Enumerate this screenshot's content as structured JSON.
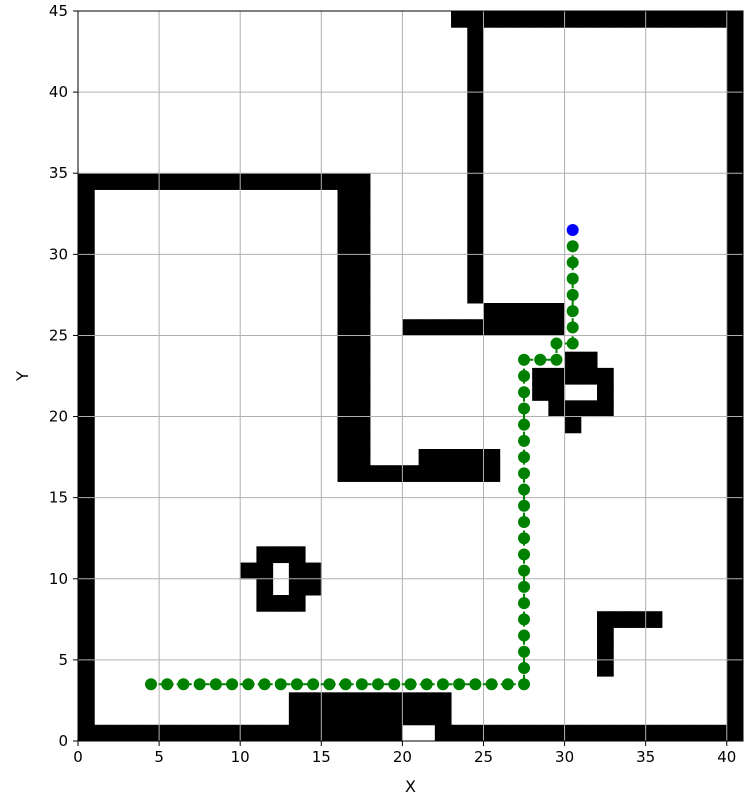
{
  "chart_data": {
    "type": "scatter",
    "title": "",
    "xlabel": "X",
    "ylabel": "Y",
    "xlim": [
      0,
      41
    ],
    "ylim": [
      0,
      45
    ],
    "xticks": [
      0,
      5,
      10,
      15,
      20,
      25,
      30,
      35,
      40
    ],
    "yticks": [
      0,
      5,
      10,
      15,
      20,
      25,
      30,
      35,
      40,
      45
    ],
    "grid": true,
    "colors": {
      "obstacle": "#000000",
      "path": "#008000",
      "start": "#0000ff",
      "grid": "#b0b0b0"
    },
    "obstacle_cells": [
      [
        23,
        44
      ],
      [
        24,
        44
      ],
      [
        25,
        44
      ],
      [
        26,
        44
      ],
      [
        27,
        44
      ],
      [
        28,
        44
      ],
      [
        29,
        44
      ],
      [
        30,
        44
      ],
      [
        31,
        44
      ],
      [
        32,
        44
      ],
      [
        33,
        44
      ],
      [
        34,
        44
      ],
      [
        35,
        44
      ],
      [
        36,
        44
      ],
      [
        37,
        44
      ],
      [
        38,
        44
      ],
      [
        39,
        44
      ],
      [
        40,
        44
      ],
      [
        24,
        27
      ],
      [
        24,
        28
      ],
      [
        24,
        29
      ],
      [
        24,
        30
      ],
      [
        24,
        31
      ],
      [
        24,
        32
      ],
      [
        24,
        33
      ],
      [
        24,
        34
      ],
      [
        24,
        35
      ],
      [
        24,
        36
      ],
      [
        24,
        37
      ],
      [
        24,
        38
      ],
      [
        24,
        39
      ],
      [
        24,
        40
      ],
      [
        24,
        41
      ],
      [
        24,
        42
      ],
      [
        24,
        43
      ],
      [
        40,
        0
      ],
      [
        40,
        1
      ],
      [
        40,
        2
      ],
      [
        40,
        3
      ],
      [
        40,
        4
      ],
      [
        40,
        5
      ],
      [
        40,
        6
      ],
      [
        40,
        7
      ],
      [
        40,
        8
      ],
      [
        40,
        9
      ],
      [
        40,
        10
      ],
      [
        40,
        11
      ],
      [
        40,
        12
      ],
      [
        40,
        13
      ],
      [
        40,
        14
      ],
      [
        40,
        15
      ],
      [
        40,
        16
      ],
      [
        40,
        17
      ],
      [
        40,
        18
      ],
      [
        40,
        19
      ],
      [
        40,
        20
      ],
      [
        40,
        21
      ],
      [
        40,
        22
      ],
      [
        40,
        23
      ],
      [
        40,
        24
      ],
      [
        40,
        25
      ],
      [
        40,
        26
      ],
      [
        40,
        27
      ],
      [
        40,
        28
      ],
      [
        40,
        29
      ],
      [
        40,
        30
      ],
      [
        40,
        31
      ],
      [
        40,
        32
      ],
      [
        40,
        33
      ],
      [
        40,
        34
      ],
      [
        40,
        35
      ],
      [
        40,
        36
      ],
      [
        40,
        37
      ],
      [
        40,
        38
      ],
      [
        40,
        39
      ],
      [
        40,
        40
      ],
      [
        40,
        41
      ],
      [
        40,
        42
      ],
      [
        40,
        43
      ],
      [
        0,
        34
      ],
      [
        1,
        34
      ],
      [
        2,
        34
      ],
      [
        3,
        34
      ],
      [
        4,
        34
      ],
      [
        5,
        34
      ],
      [
        6,
        34
      ],
      [
        7,
        34
      ],
      [
        8,
        34
      ],
      [
        9,
        34
      ],
      [
        10,
        34
      ],
      [
        11,
        34
      ],
      [
        12,
        34
      ],
      [
        13,
        34
      ],
      [
        14,
        34
      ],
      [
        15,
        34
      ],
      [
        16,
        34
      ],
      [
        17,
        34
      ],
      [
        0,
        0
      ],
      [
        0,
        1
      ],
      [
        0,
        2
      ],
      [
        0,
        3
      ],
      [
        0,
        4
      ],
      [
        0,
        5
      ],
      [
        0,
        6
      ],
      [
        0,
        7
      ],
      [
        0,
        8
      ],
      [
        0,
        9
      ],
      [
        0,
        10
      ],
      [
        0,
        11
      ],
      [
        0,
        12
      ],
      [
        0,
        13
      ],
      [
        0,
        14
      ],
      [
        0,
        15
      ],
      [
        0,
        16
      ],
      [
        0,
        17
      ],
      [
        0,
        18
      ],
      [
        0,
        19
      ],
      [
        0,
        20
      ],
      [
        0,
        21
      ],
      [
        0,
        22
      ],
      [
        0,
        23
      ],
      [
        0,
        24
      ],
      [
        0,
        25
      ],
      [
        0,
        26
      ],
      [
        0,
        27
      ],
      [
        0,
        28
      ],
      [
        0,
        29
      ],
      [
        0,
        30
      ],
      [
        0,
        31
      ],
      [
        0,
        32
      ],
      [
        0,
        33
      ],
      [
        16,
        16
      ],
      [
        16,
        17
      ],
      [
        16,
        18
      ],
      [
        16,
        19
      ],
      [
        16,
        20
      ],
      [
        16,
        21
      ],
      [
        16,
        22
      ],
      [
        16,
        23
      ],
      [
        16,
        24
      ],
      [
        16,
        25
      ],
      [
        16,
        26
      ],
      [
        16,
        27
      ],
      [
        16,
        28
      ],
      [
        16,
        29
      ],
      [
        16,
        30
      ],
      [
        16,
        31
      ],
      [
        16,
        32
      ],
      [
        16,
        33
      ],
      [
        17,
        16
      ],
      [
        17,
        17
      ],
      [
        17,
        18
      ],
      [
        17,
        19
      ],
      [
        17,
        20
      ],
      [
        17,
        21
      ],
      [
        17,
        22
      ],
      [
        17,
        23
      ],
      [
        17,
        24
      ],
      [
        17,
        25
      ],
      [
        17,
        26
      ],
      [
        17,
        27
      ],
      [
        17,
        28
      ],
      [
        17,
        29
      ],
      [
        17,
        30
      ],
      [
        17,
        31
      ],
      [
        17,
        32
      ],
      [
        17,
        33
      ],
      [
        18,
        16
      ],
      [
        19,
        16
      ],
      [
        20,
        16
      ],
      [
        21,
        16
      ],
      [
        22,
        16
      ],
      [
        23,
        16
      ],
      [
        24,
        16
      ],
      [
        25,
        16
      ],
      [
        21,
        17
      ],
      [
        22,
        17
      ],
      [
        23,
        17
      ],
      [
        24,
        17
      ],
      [
        25,
        17
      ],
      [
        20,
        25
      ],
      [
        21,
        25
      ],
      [
        22,
        25
      ],
      [
        23,
        25
      ],
      [
        24,
        25
      ],
      [
        25,
        25
      ],
      [
        26,
        25
      ],
      [
        27,
        25
      ],
      [
        28,
        25
      ],
      [
        29,
        25
      ],
      [
        25,
        26
      ],
      [
        26,
        26
      ],
      [
        27,
        26
      ],
      [
        28,
        26
      ],
      [
        29,
        26
      ],
      [
        30,
        23
      ],
      [
        31,
        23
      ],
      [
        30,
        22
      ],
      [
        31,
        22
      ],
      [
        32,
        22
      ],
      [
        28,
        22
      ],
      [
        29,
        22
      ],
      [
        28,
        21
      ],
      [
        29,
        21
      ],
      [
        32,
        21
      ],
      [
        29,
        20
      ],
      [
        30,
        20
      ],
      [
        31,
        20
      ],
      [
        32,
        20
      ],
      [
        30,
        19
      ],
      [
        11,
        11
      ],
      [
        12,
        11
      ],
      [
        13,
        11
      ],
      [
        10,
        10
      ],
      [
        11,
        10
      ],
      [
        13,
        10
      ],
      [
        14,
        10
      ],
      [
        11,
        9
      ],
      [
        13,
        9
      ],
      [
        14,
        9
      ],
      [
        11,
        8
      ],
      [
        12,
        8
      ],
      [
        13,
        8
      ],
      [
        32,
        4
      ],
      [
        32,
        5
      ],
      [
        32,
        6
      ],
      [
        32,
        7
      ],
      [
        33,
        7
      ],
      [
        34,
        7
      ],
      [
        35,
        7
      ],
      [
        13,
        1
      ],
      [
        14,
        1
      ],
      [
        15,
        1
      ],
      [
        16,
        1
      ],
      [
        17,
        1
      ],
      [
        18,
        1
      ],
      [
        19,
        1
      ],
      [
        20,
        1
      ],
      [
        21,
        1
      ],
      [
        22,
        1
      ],
      [
        13,
        2
      ],
      [
        14,
        2
      ],
      [
        15,
        2
      ],
      [
        16,
        2
      ],
      [
        17,
        2
      ],
      [
        18,
        2
      ],
      [
        19,
        2
      ],
      [
        20,
        2
      ],
      [
        21,
        2
      ],
      [
        22,
        2
      ],
      [
        1,
        0
      ],
      [
        2,
        0
      ],
      [
        3,
        0
      ],
      [
        4,
        0
      ],
      [
        5,
        0
      ],
      [
        6,
        0
      ],
      [
        7,
        0
      ],
      [
        8,
        0
      ],
      [
        9,
        0
      ],
      [
        10,
        0
      ],
      [
        11,
        0
      ],
      [
        12,
        0
      ],
      [
        13,
        0
      ],
      [
        14,
        0
      ],
      [
        15,
        0
      ],
      [
        16,
        0
      ],
      [
        17,
        0
      ],
      [
        18,
        0
      ],
      [
        19,
        0
      ],
      [
        22,
        0
      ],
      [
        23,
        0
      ],
      [
        24,
        0
      ],
      [
        25,
        0
      ],
      [
        26,
        0
      ],
      [
        27,
        0
      ],
      [
        28,
        0
      ],
      [
        29,
        0
      ],
      [
        30,
        0
      ],
      [
        31,
        0
      ],
      [
        32,
        0
      ],
      [
        33,
        0
      ],
      [
        34,
        0
      ],
      [
        35,
        0
      ],
      [
        36,
        0
      ],
      [
        37,
        0
      ],
      [
        38,
        0
      ],
      [
        39,
        0
      ]
    ],
    "path": [
      [
        30.5,
        30.5
      ],
      [
        30.5,
        29.5
      ],
      [
        30.5,
        28.5
      ],
      [
        30.5,
        27.5
      ],
      [
        30.5,
        26.5
      ],
      [
        30.5,
        25.5
      ],
      [
        30.5,
        24.5
      ],
      [
        29.5,
        24.5
      ],
      [
        29.5,
        23.5
      ],
      [
        28.5,
        23.5
      ],
      [
        27.5,
        23.5
      ],
      [
        27.5,
        22.5
      ],
      [
        27.5,
        21.5
      ],
      [
        27.5,
        20.5
      ],
      [
        27.5,
        19.5
      ],
      [
        27.5,
        18.5
      ],
      [
        27.5,
        17.5
      ],
      [
        27.5,
        16.5
      ],
      [
        27.5,
        15.5
      ],
      [
        27.5,
        14.5
      ],
      [
        27.5,
        13.5
      ],
      [
        27.5,
        12.5
      ],
      [
        27.5,
        11.5
      ],
      [
        27.5,
        10.5
      ],
      [
        27.5,
        9.5
      ],
      [
        27.5,
        8.5
      ],
      [
        27.5,
        7.5
      ],
      [
        27.5,
        6.5
      ],
      [
        27.5,
        5.5
      ],
      [
        27.5,
        4.5
      ],
      [
        27.5,
        3.5
      ],
      [
        26.5,
        3.5
      ],
      [
        25.5,
        3.5
      ],
      [
        24.5,
        3.5
      ],
      [
        23.5,
        3.5
      ],
      [
        22.5,
        3.5
      ],
      [
        21.5,
        3.5
      ],
      [
        20.5,
        3.5
      ],
      [
        19.5,
        3.5
      ],
      [
        18.5,
        3.5
      ],
      [
        17.5,
        3.5
      ],
      [
        16.5,
        3.5
      ],
      [
        15.5,
        3.5
      ],
      [
        14.5,
        3.5
      ],
      [
        13.5,
        3.5
      ],
      [
        12.5,
        3.5
      ],
      [
        11.5,
        3.5
      ],
      [
        10.5,
        3.5
      ],
      [
        9.5,
        3.5
      ],
      [
        8.5,
        3.5
      ],
      [
        7.5,
        3.5
      ],
      [
        6.5,
        3.5
      ],
      [
        5.5,
        3.5
      ],
      [
        4.5,
        3.5
      ]
    ],
    "start": [
      30.5,
      31.5
    ]
  }
}
